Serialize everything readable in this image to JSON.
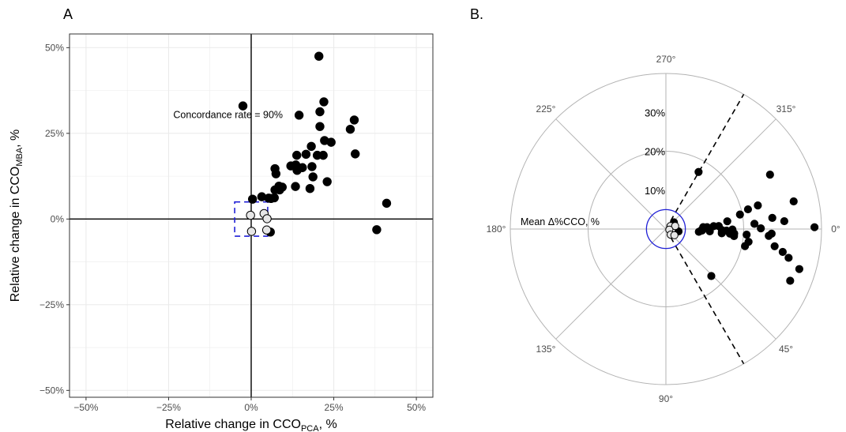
{
  "chart_data": [
    {
      "panel": "A",
      "type": "scatter",
      "xlabel_main": "Relative change in CCO",
      "xlabel_sub": "PCA",
      "xlabel_suffix": ", %",
      "ylabel_main": "Relative change in CCO",
      "ylabel_sub": "MBA",
      "ylabel_suffix": ", %",
      "xlim": [
        -55,
        55
      ],
      "ylim": [
        -52,
        54
      ],
      "x_ticks": [
        {
          "value": -50,
          "label": "−50%"
        },
        {
          "value": -25,
          "label": "−25%"
        },
        {
          "value": 0,
          "label": "0%"
        },
        {
          "value": 25,
          "label": "25%"
        },
        {
          "value": 50,
          "label": "50%"
        }
      ],
      "y_ticks": [
        {
          "value": -50,
          "label": "−50%"
        },
        {
          "value": -25,
          "label": "−25%"
        },
        {
          "value": 0,
          "label": "0%"
        },
        {
          "value": 25,
          "label": "25%"
        },
        {
          "value": 50,
          "label": "50%"
        }
      ],
      "grid": true,
      "annotation": {
        "text": "Concordance rate = 90%",
        "x": -7,
        "y": 29.5
      },
      "exclusion_zone": {
        "x": [
          -5,
          5
        ],
        "y": [
          -5,
          5
        ],
        "color": "#1f1fd6"
      },
      "series": [
        {
          "fill": "#000000",
          "points": [
            {
              "x": 20.5,
              "y": 47.5
            },
            {
              "x": -2.5,
              "y": 33
            },
            {
              "x": 22,
              "y": 34.2
            },
            {
              "x": 14.5,
              "y": 30.3
            },
            {
              "x": 20.8,
              "y": 31.3
            },
            {
              "x": 31.2,
              "y": 28.9
            },
            {
              "x": 20.8,
              "y": 27
            },
            {
              "x": 30,
              "y": 26.2
            },
            {
              "x": 22.2,
              "y": 22.9
            },
            {
              "x": 24.2,
              "y": 22.4
            },
            {
              "x": 18.2,
              "y": 21.2
            },
            {
              "x": 31.5,
              "y": 19
            },
            {
              "x": 13.8,
              "y": 18.6
            },
            {
              "x": 16.6,
              "y": 18.9
            },
            {
              "x": 20,
              "y": 18.6
            },
            {
              "x": 21.8,
              "y": 18.6
            },
            {
              "x": 12,
              "y": 15.5
            },
            {
              "x": 13.5,
              "y": 15.8
            },
            {
              "x": 15.5,
              "y": 15
            },
            {
              "x": 18.4,
              "y": 15.3
            },
            {
              "x": 7.2,
              "y": 14.7
            },
            {
              "x": 13.9,
              "y": 14.2
            },
            {
              "x": 7.5,
              "y": 13.2
            },
            {
              "x": 18.7,
              "y": 12.3
            },
            {
              "x": 23,
              "y": 10.9
            },
            {
              "x": 8.4,
              "y": 9.6
            },
            {
              "x": 9.4,
              "y": 9.3
            },
            {
              "x": 13.4,
              "y": 9.5
            },
            {
              "x": 17.8,
              "y": 8.9
            },
            {
              "x": 7.2,
              "y": 8.5
            },
            {
              "x": 8.6,
              "y": 8.5
            },
            {
              "x": 3.2,
              "y": 6.5
            },
            {
              "x": 6,
              "y": 6
            },
            {
              "x": 7,
              "y": 6.2
            },
            {
              "x": 0.4,
              "y": 5.8
            },
            {
              "x": 5.3,
              "y": 6.1
            },
            {
              "x": 41,
              "y": 4.6
            },
            {
              "x": 38,
              "y": -3.1
            },
            {
              "x": 5.8,
              "y": -3.8
            }
          ]
        },
        {
          "fill": "#e6e6e6",
          "points": [
            {
              "x": -0.2,
              "y": 1.1
            },
            {
              "x": 3.9,
              "y": 1.6
            },
            {
              "x": 4.8,
              "y": 0.1
            },
            {
              "x": 0.1,
              "y": -3.6
            },
            {
              "x": 4.7,
              "y": -3.2
            }
          ]
        }
      ]
    },
    {
      "panel": "B.",
      "type": "scatter",
      "coord": "polar",
      "angle_labels": [
        {
          "deg": 0,
          "label": "0°"
        },
        {
          "deg": 45,
          "label": "45°"
        },
        {
          "deg": 90,
          "label": "90°"
        },
        {
          "deg": 135,
          "label": "135°"
        },
        {
          "deg": 180,
          "label": "180°"
        },
        {
          "deg": 225,
          "label": "225°"
        },
        {
          "deg": 270,
          "label": "270°"
        },
        {
          "deg": 315,
          "label": "315°"
        }
      ],
      "radial_axis_title": "Mean Δ%CCO, %",
      "radial_ticks": [
        {
          "value": 10,
          "label": "10%"
        },
        {
          "value": 20,
          "label": "20%"
        },
        {
          "value": 30,
          "label": "30%"
        }
      ],
      "radial_max": 40,
      "rings_drawn": [
        20,
        40
      ],
      "exclusion_circle_radius": 5,
      "exclusion_color": "#1f1fd6",
      "limit_lines_deg": [
        300,
        60
      ],
      "limit_line_length": 40,
      "series": [
        {
          "fill": "#000000",
          "points": [
            {
              "angle": 332.4,
              "r": 30.2
            },
            {
              "angle": 299.8,
              "r": 16.9
            },
            {
              "angle": 345.6,
              "r": 24.4
            },
            {
              "angle": 347.8,
              "r": 33.6
            },
            {
              "angle": 356.2,
              "r": 30.5
            },
            {
              "angle": 16.7,
              "r": 35.8
            },
            {
              "angle": 11.1,
              "r": 30.6
            },
            {
              "angle": 13.2,
              "r": 32.4
            },
            {
              "angle": 9,
              "r": 28.3
            },
            {
              "angle": 359.3,
              "r": 38.2
            },
            {
              "angle": 354,
              "r": 27.5
            },
            {
              "angle": 346.5,
              "r": 21.7
            },
            {
              "angle": 348.9,
              "r": 19.4
            },
            {
              "angle": 2.5,
              "r": 27.2
            },
            {
              "angle": 4,
              "r": 20.8
            },
            {
              "angle": 12.2,
              "r": 20.8
            },
            {
              "angle": 4.4,
              "r": 14.4
            },
            {
              "angle": 356.6,
              "r": 22.8
            },
            {
              "angle": 352.8,
              "r": 15.9
            },
            {
              "angle": 3.8,
              "r": 26.5
            },
            {
              "angle": 8.8,
              "r": 21.5
            },
            {
              "angle": 356.8,
              "r": 13.6
            },
            {
              "angle": 0.4,
              "r": 17.1
            },
            {
              "angle": 3.7,
              "r": 17.6
            },
            {
              "angle": 5.9,
              "r": 17.6
            },
            {
              "angle": 359.6,
              "r": 24.4
            },
            {
              "angle": 1.5,
              "r": 15.6
            },
            {
              "angle": 1.4,
              "r": 9.2
            },
            {
              "angle": 3,
              "r": 11.3
            },
            {
              "angle": 2.8,
              "r": 14.4
            },
            {
              "angle": 357.4,
              "r": 10.6
            },
            {
              "angle": 1.1,
              "r": 14.4
            },
            {
              "angle": 357.1,
              "r": 9.6
            },
            {
              "angle": 356.6,
              "r": 12.3
            },
            {
              "angle": 2.4,
              "r": 9.3
            },
            {
              "angle": 4.2,
              "r": 16.5
            },
            {
              "angle": 22.6,
              "r": 34.6
            },
            {
              "angle": 46,
              "r": 16.8
            },
            {
              "angle": 4.8,
              "r": 8.5
            },
            {
              "angle": 320,
              "r": 2.7
            },
            {
              "angle": 10.5,
              "r": 3.3
            }
          ]
        },
        {
          "fill": "#e6e6e6",
          "points": [
            {
              "angle": 327.3,
              "r": 1.4
            },
            {
              "angle": 342,
              "r": 2.5
            },
            {
              "angle": 10.8,
              "r": 0.9
            },
            {
              "angle": 49.6,
              "r": 1.9
            },
            {
              "angle": 35.9,
              "r": 2.7
            }
          ]
        }
      ]
    }
  ]
}
